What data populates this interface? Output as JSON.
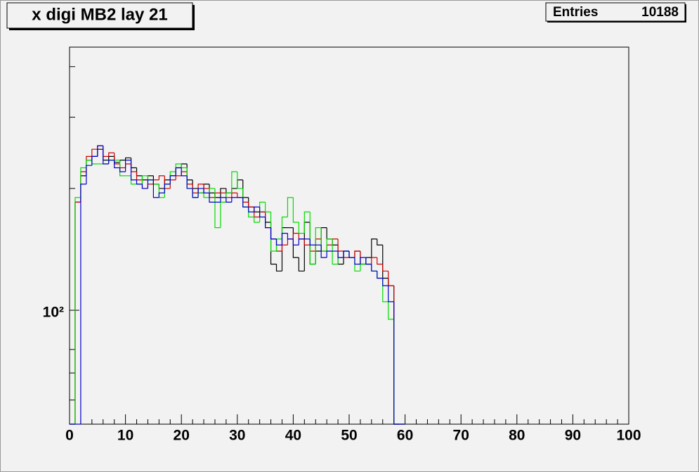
{
  "chart_data": {
    "type": "histogram",
    "title": "x digi MB2 lay 21",
    "stats": {
      "label": "Entries",
      "value": "10188"
    },
    "bins": [
      0,
      1,
      2,
      3,
      4,
      5,
      6,
      7,
      8,
      9,
      10,
      11,
      12,
      13,
      14,
      15,
      16,
      17,
      18,
      19,
      20,
      21,
      22,
      23,
      24,
      25,
      26,
      27,
      28,
      29,
      30,
      31,
      32,
      33,
      34,
      35,
      36,
      37,
      38,
      39,
      40,
      41,
      42,
      43,
      44,
      45,
      46,
      47,
      48,
      49,
      50,
      51,
      52,
      53,
      54,
      55,
      56,
      57,
      58,
      59,
      60
    ],
    "series": [
      {
        "color": "#000000",
        "values": [
          0,
          185,
          215,
          235,
          240,
          250,
          235,
          240,
          232,
          235,
          238,
          225,
          215,
          210,
          215,
          205,
          200,
          210,
          215,
          225,
          230,
          210,
          200,
          195,
          205,
          195,
          190,
          200,
          195,
          200,
          210,
          190,
          180,
          175,
          175,
          165,
          130,
          125,
          160,
          160,
          135,
          125,
          165,
          130,
          140,
          160,
          150,
          145,
          130,
          140,
          135,
          140,
          130,
          135,
          150,
          145,
          120,
          115,
          0,
          0
        ]
      },
      {
        "color": "#cc0000",
        "values": [
          0,
          185,
          220,
          240,
          250,
          255,
          240,
          245,
          230,
          225,
          230,
          220,
          210,
          200,
          205,
          210,
          215,
          200,
          210,
          215,
          220,
          205,
          195,
          205,
          200,
          190,
          195,
          195,
          190,
          195,
          190,
          185,
          180,
          170,
          175,
          160,
          150,
          140,
          145,
          150,
          155,
          150,
          145,
          140,
          150,
          140,
          145,
          150,
          140,
          135,
          135,
          140,
          130,
          130,
          135,
          130,
          125,
          115,
          0,
          0
        ]
      },
      {
        "color": "#00dd00",
        "values": [
          0,
          190,
          225,
          235,
          230,
          230,
          230,
          235,
          235,
          215,
          215,
          205,
          205,
          215,
          210,
          205,
          190,
          205,
          220,
          230,
          225,
          200,
          190,
          195,
          190,
          200,
          160,
          185,
          195,
          220,
          200,
          180,
          170,
          165,
          185,
          175,
          140,
          150,
          170,
          190,
          165,
          155,
          175,
          130,
          160,
          140,
          150,
          130,
          135,
          140,
          135,
          125,
          130,
          130,
          125,
          120,
          105,
          95,
          0,
          0
        ]
      },
      {
        "color": "#0000cc",
        "values": [
          0,
          0,
          205,
          228,
          240,
          255,
          230,
          235,
          225,
          220,
          235,
          210,
          205,
          200,
          210,
          190,
          195,
          205,
          215,
          225,
          215,
          200,
          190,
          200,
          195,
          185,
          185,
          190,
          185,
          190,
          190,
          180,
          175,
          180,
          170,
          160,
          150,
          145,
          155,
          150,
          145,
          150,
          150,
          145,
          145,
          135,
          140,
          140,
          135,
          140,
          135,
          130,
          135,
          130,
          125,
          120,
          115,
          105,
          0,
          0
        ]
      }
    ],
    "xlim": [
      0,
      100
    ],
    "xticks": [
      0,
      10,
      20,
      30,
      40,
      50,
      60,
      70,
      80,
      90,
      100
    ],
    "xminorticks": [
      2,
      4,
      6,
      8,
      12,
      14,
      16,
      18,
      22,
      24,
      26,
      28,
      32,
      34,
      36,
      38,
      42,
      44,
      46,
      48,
      52,
      54,
      56,
      58,
      62,
      64,
      66,
      68,
      72,
      74,
      76,
      78,
      82,
      84,
      86,
      88,
      92,
      94,
      96,
      98
    ],
    "ylim": [
      52.3,
      447
    ],
    "log_y": true,
    "yticks": [
      {
        "value": 100,
        "label": "10²"
      }
    ],
    "yminorticks": [
      60,
      70,
      80,
      200,
      300,
      400
    ]
  }
}
